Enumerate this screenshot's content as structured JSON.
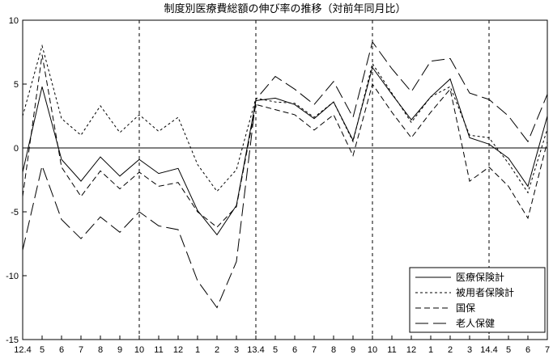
{
  "title": "制度別医療費総額の伸び率の推移（対前年同月比）",
  "chart_data": {
    "type": "line",
    "x_labels": [
      "12.4",
      "5",
      "6",
      "7",
      "8",
      "9",
      "10",
      "11",
      "12",
      "1",
      "2",
      "3",
      "13.4",
      "5",
      "6",
      "7",
      "8",
      "9",
      "10",
      "11",
      "12",
      "1",
      "2",
      "3",
      "14.4",
      "5",
      "6",
      "7"
    ],
    "y_ticks": [
      10,
      5,
      0,
      -5,
      -10,
      -15
    ],
    "ylim": [
      -15,
      10
    ],
    "zero_line": true,
    "grid": "vertical-dashed-at-fiscal-marks",
    "vertical_gridline_indices": [
      6,
      12,
      18,
      24
    ],
    "vertical_gridline_labels": [
      "10",
      "13.4",
      "10",
      "14.4"
    ],
    "legend_position": "bottom-right",
    "line_color": "#000000",
    "background_color": "#ffffff",
    "series": [
      {
        "name": "医療保険計",
        "style": "solid",
        "values": [
          -1.9,
          4.8,
          -0.9,
          -2.6,
          -0.7,
          -2.2,
          -0.9,
          -2.0,
          -1.6,
          -4.9,
          -6.8,
          -4.5,
          3.7,
          3.9,
          3.4,
          2.3,
          3.6,
          0.6,
          6.3,
          4.2,
          2.2,
          4.0,
          5.4,
          0.8,
          0.3,
          -0.8,
          -3.0,
          2.5
        ]
      },
      {
        "name": "被用者保険計",
        "style": "dash-fine",
        "values": [
          2.5,
          8.0,
          2.3,
          1.0,
          3.3,
          1.2,
          2.6,
          1.3,
          2.4,
          -1.3,
          -3.4,
          -1.7,
          3.9,
          3.6,
          3.5,
          2.4,
          3.6,
          0.5,
          6.6,
          4.3,
          2.0,
          4.0,
          4.8,
          1.0,
          0.8,
          -1.2,
          -3.5,
          1.5
        ]
      },
      {
        "name": "国保",
        "style": "dash-medium",
        "values": [
          -3.8,
          7.3,
          -1.5,
          -3.8,
          -1.8,
          -3.2,
          -1.9,
          -3.0,
          -2.7,
          -5.0,
          -6.2,
          -4.6,
          3.4,
          3.0,
          2.6,
          1.4,
          2.6,
          -0.6,
          5.0,
          2.8,
          0.8,
          2.8,
          4.6,
          -2.6,
          -1.5,
          -3.0,
          -5.5,
          0.5
        ]
      },
      {
        "name": "老人保健",
        "style": "dash-long",
        "values": [
          -8.0,
          -1.4,
          -5.6,
          -7.1,
          -5.4,
          -6.6,
          -5.0,
          -6.1,
          -6.4,
          -10.4,
          -12.5,
          -8.9,
          3.8,
          5.6,
          4.6,
          3.4,
          5.2,
          2.4,
          8.3,
          6.2,
          4.4,
          6.8,
          7.0,
          4.3,
          3.8,
          2.5,
          0.5,
          4.2
        ]
      }
    ]
  }
}
